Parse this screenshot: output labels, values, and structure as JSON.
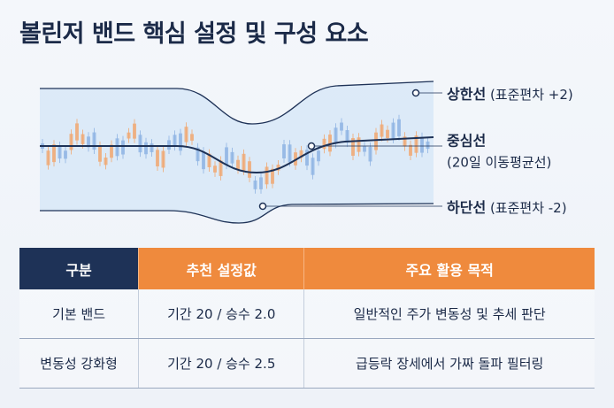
{
  "title": "볼린저 밴드 핵심 설정 및 구성 요소",
  "bands": {
    "upper": {
      "name": "상한선",
      "desc": "(표준편차 +2)"
    },
    "middle": {
      "name": "중심선",
      "desc": "(20일 이동평균선)"
    },
    "lower": {
      "name": "하단선",
      "desc": "(표준편차 -2)"
    }
  },
  "table": {
    "headers": [
      "구분",
      "추천 설정값",
      "주요 활용 목적"
    ],
    "rows": [
      [
        "기본 밴드",
        "기간 20 / 승수 2.0",
        "일반적인 주가 변동성 및 추세 판단"
      ],
      [
        "변동성 강화형",
        "기간 20 / 승수 2.5",
        "급등락 장세에서 가짜 돌파 필터링"
      ]
    ]
  }
}
